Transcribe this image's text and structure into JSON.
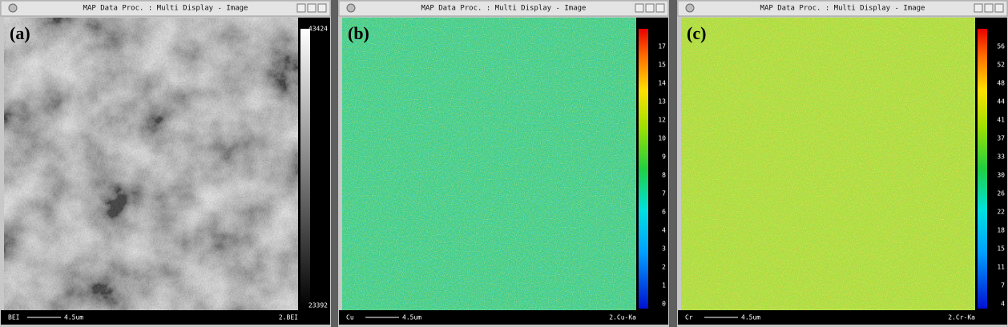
{
  "panels": [
    {
      "title": "MAP Data Proc. : Multi Display - Image",
      "label": "(a)",
      "scale_labels": [
        43424,
        23392
      ],
      "footer": {
        "signal": "BEI",
        "scale_bar": "4.5um",
        "channel": "2.BEI"
      }
    },
    {
      "title": "MAP Data Proc. : Multi Display - Image",
      "label": "(b)",
      "scale_labels": [
        17,
        15,
        14,
        13,
        12,
        10,
        9,
        8,
        7,
        6,
        4,
        3,
        2,
        1,
        0
      ],
      "footer": {
        "signal": "Cu",
        "scale_bar": "4.5um",
        "channel": "2.Cu-Ka"
      }
    },
    {
      "title": "MAP Data Proc. : Multi Display - Image",
      "label": "(c)",
      "scale_labels": [
        56,
        52,
        48,
        44,
        41,
        37,
        33,
        30,
        26,
        22,
        18,
        15,
        11,
        7,
        4
      ],
      "footer": {
        "signal": "Cr",
        "scale_bar": "4.5um",
        "channel": "2.Cr-Ka"
      }
    }
  ]
}
